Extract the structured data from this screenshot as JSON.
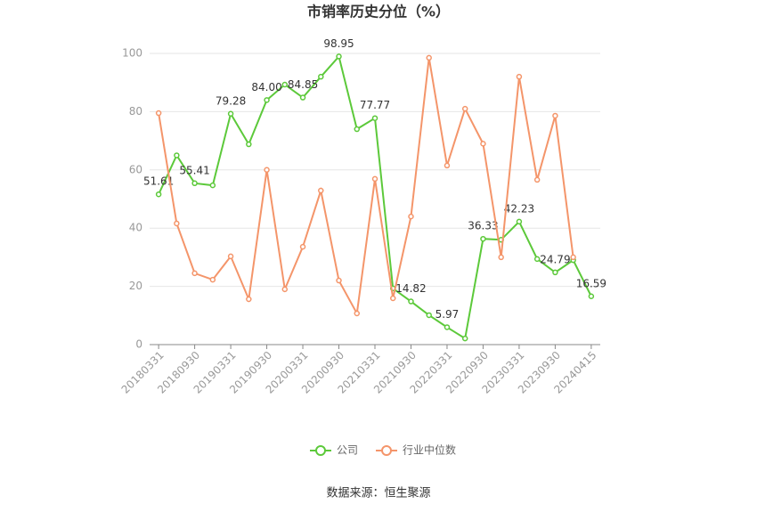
{
  "chart_data": {
    "type": "line",
    "title": "市销率历史分位（%）",
    "categories": [
      "20180331",
      null,
      "20180930",
      null,
      "20190331",
      null,
      "20190930",
      null,
      "20200331",
      null,
      "20200930",
      null,
      "20210331",
      null,
      "20210930",
      null,
      "20220331",
      null,
      "20220930",
      null,
      "20230331",
      null,
      "20230930",
      null,
      "20240415"
    ],
    "series": [
      {
        "name": "公司",
        "color": "#5cc93a",
        "values": [
          51.61,
          65,
          55.41,
          54.7,
          79.28,
          68.8,
          84.0,
          89.3,
          84.85,
          92,
          98.95,
          74,
          77.77,
          19.3,
          14.82,
          10.1,
          5.97,
          2.1,
          36.33,
          36,
          42.23,
          29.4,
          24.79,
          29,
          16.59
        ],
        "value_labels": [
          "51.61",
          null,
          "55.41",
          null,
          "79.28",
          null,
          "84.00",
          null,
          "84.85",
          null,
          "98.95",
          null,
          "77.77",
          null,
          "14.82",
          null,
          "5.97",
          null,
          "36.33",
          null,
          "42.23",
          null,
          "24.79",
          null,
          "16.59"
        ]
      },
      {
        "name": "行业中位数",
        "color": "#f4956a",
        "values": [
          79.5,
          41.6,
          24.5,
          22.3,
          30.3,
          15.6,
          60,
          19,
          33.6,
          52.9,
          22,
          10.7,
          56.9,
          15.9,
          44,
          98.5,
          61.5,
          81,
          69,
          30,
          92,
          56.6,
          78.6,
          30,
          null
        ]
      }
    ],
    "ylim": [
      0,
      100
    ],
    "yticks": [
      0,
      20,
      40,
      60,
      80,
      100
    ],
    "grid": true,
    "source": "数据来源：恒生聚源"
  }
}
